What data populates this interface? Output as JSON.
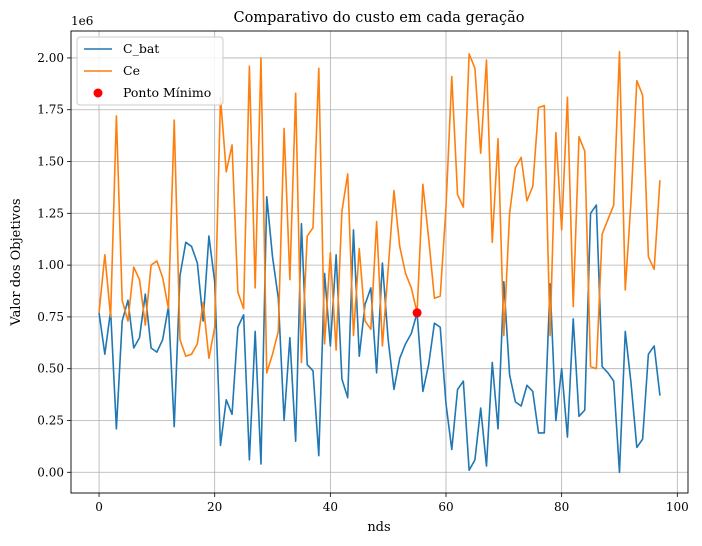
{
  "chart_data": {
    "type": "line",
    "title": "Comparativo do custo em cada geração",
    "xlabel": "nds",
    "ylabel": "Valor dos Objetivos",
    "y_offset_label": "1e6",
    "xlim": [
      -4.85,
      101.85
    ],
    "ylim": [
      -0.1,
      2.13
    ],
    "x_ticks": [
      0,
      20,
      40,
      60,
      80,
      100
    ],
    "x_tick_labels": [
      "0",
      "20",
      "40",
      "60",
      "80",
      "100"
    ],
    "y_ticks": [
      0,
      0.25,
      0.5,
      0.75,
      1.0,
      1.25,
      1.5,
      1.75,
      2.0
    ],
    "y_tick_labels": [
      "0.00",
      "0.25",
      "0.50",
      "0.75",
      "1.00",
      "1.25",
      "1.50",
      "1.75",
      "2.00"
    ],
    "grid": true,
    "legend_position": "top-left",
    "series": [
      {
        "name": "C_bat",
        "color": "#1f77b4",
        "values": [
          0.77,
          0.57,
          0.78,
          0.21,
          0.73,
          0.83,
          0.6,
          0.65,
          0.86,
          0.6,
          0.58,
          0.64,
          0.8,
          0.22,
          0.95,
          1.11,
          1.09,
          1.01,
          0.73,
          1.14,
          0.92,
          0.13,
          0.35,
          0.28,
          0.7,
          0.76,
          0.06,
          0.68,
          0.04,
          1.33,
          1.04,
          0.84,
          0.25,
          0.65,
          0.15,
          1.2,
          0.52,
          0.49,
          0.08,
          0.96,
          0.61,
          1.05,
          0.45,
          0.36,
          1.17,
          0.56,
          0.81,
          0.89,
          0.48,
          1.01,
          0.64,
          0.4,
          0.55,
          0.62,
          0.67,
          0.77,
          0.39,
          0.52,
          0.72,
          0.7,
          0.33,
          0.11,
          0.4,
          0.44,
          0.01,
          0.06,
          0.31,
          0.03,
          0.53,
          0.21,
          0.92,
          0.47,
          0.34,
          0.32,
          0.42,
          0.39,
          0.19,
          0.19,
          0.91,
          0.25,
          0.5,
          0.17,
          0.74,
          0.27,
          0.3,
          1.25,
          1.29,
          0.51,
          0.48,
          0.44,
          0.0,
          0.68,
          0.43,
          0.12,
          0.16,
          0.57,
          0.61,
          0.37
        ]
      },
      {
        "name": "Ce",
        "color": "#ff7f0e",
        "values": [
          0.77,
          1.05,
          0.75,
          1.72,
          0.83,
          0.73,
          0.99,
          0.93,
          0.71,
          1.0,
          1.02,
          0.94,
          0.79,
          1.7,
          0.64,
          0.56,
          0.57,
          0.62,
          0.82,
          0.55,
          0.7,
          1.81,
          1.45,
          1.58,
          0.87,
          0.79,
          1.96,
          0.89,
          2.0,
          0.48,
          0.57,
          0.68,
          1.66,
          0.93,
          1.83,
          0.53,
          1.14,
          1.18,
          1.95,
          0.62,
          1.06,
          0.59,
          1.26,
          1.44,
          0.66,
          1.08,
          0.73,
          0.69,
          1.21,
          0.61,
          0.98,
          1.36,
          1.09,
          0.96,
          0.89,
          0.77,
          1.39,
          1.13,
          0.84,
          0.85,
          1.28,
          1.91,
          1.34,
          1.28,
          2.02,
          1.95,
          1.54,
          1.99,
          1.11,
          1.61,
          0.66,
          1.25,
          1.47,
          1.52,
          1.31,
          1.38,
          1.76,
          1.77,
          0.66,
          1.64,
          1.17,
          1.81,
          0.8,
          1.62,
          1.55,
          0.51,
          0.5,
          1.15,
          1.22,
          1.29,
          2.03,
          0.88,
          1.31,
          1.89,
          1.82,
          1.04,
          0.98,
          1.41
        ]
      }
    ],
    "minimum_point": {
      "name": "Ponto Mínimo",
      "x": 55,
      "y": 0.77,
      "color": "#ff0000"
    }
  }
}
